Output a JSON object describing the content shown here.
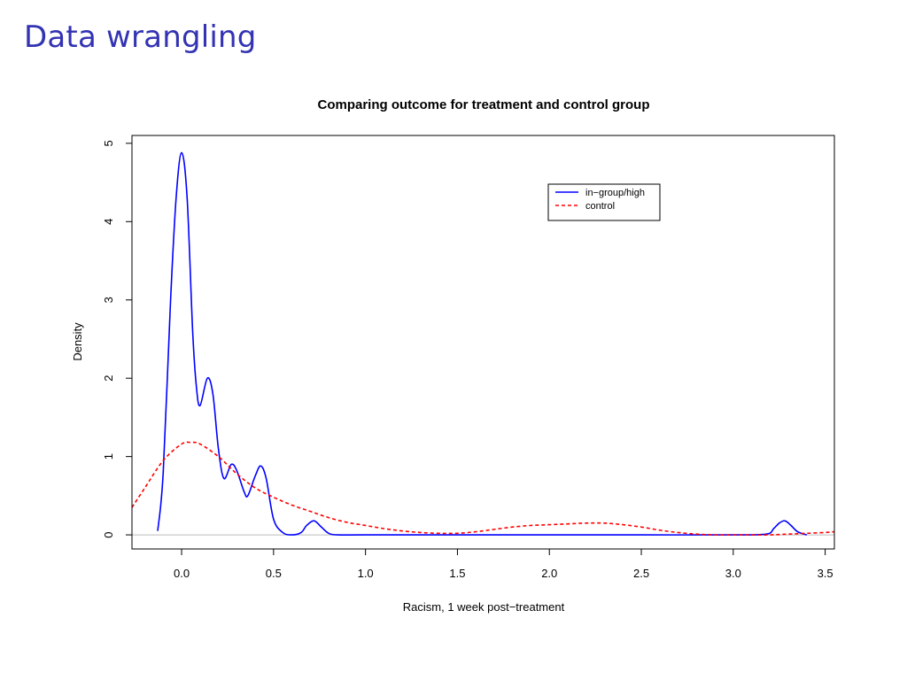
{
  "slide": {
    "title": "Data wrangling"
  },
  "chart_data": {
    "type": "line",
    "title": "Comparing outcome for treatment and control group",
    "xlabel": "Racism, 1 week post−treatment",
    "ylabel": "Density",
    "xlim": [
      -0.27,
      3.55
    ],
    "ylim": [
      -0.18,
      5.1
    ],
    "x_ticks": [
      {
        "value": 0.0,
        "label": "0.0"
      },
      {
        "value": 0.5,
        "label": "0.5"
      },
      {
        "value": 1.0,
        "label": "1.0"
      },
      {
        "value": 1.5,
        "label": "1.5"
      },
      {
        "value": 2.0,
        "label": "2.0"
      },
      {
        "value": 2.5,
        "label": "2.5"
      },
      {
        "value": 3.0,
        "label": "3.0"
      },
      {
        "value": 3.5,
        "label": "3.5"
      }
    ],
    "y_ticks": [
      {
        "value": 0,
        "label": "0"
      },
      {
        "value": 1,
        "label": "1"
      },
      {
        "value": 2,
        "label": "2"
      },
      {
        "value": 3,
        "label": "3"
      },
      {
        "value": 4,
        "label": "4"
      },
      {
        "value": 5,
        "label": "5"
      }
    ],
    "zero_line": true,
    "grid": false,
    "legend": {
      "position": "top-right"
    },
    "series": [
      {
        "name": "in−group/high",
        "color": "#0000ff",
        "dash": "solid",
        "x": [
          -0.13,
          -0.1,
          -0.06,
          -0.03,
          0.0,
          0.03,
          0.06,
          0.08,
          0.1,
          0.14,
          0.17,
          0.2,
          0.23,
          0.27,
          0.3,
          0.34,
          0.36,
          0.4,
          0.43,
          0.46,
          0.5,
          0.55,
          0.6,
          0.65,
          0.68,
          0.72,
          0.76,
          0.8,
          0.85,
          1.0,
          1.5,
          2.0,
          2.5,
          3.0,
          3.18,
          3.22,
          3.25,
          3.28,
          3.31,
          3.35,
          3.4
        ],
        "y": [
          0.05,
          0.8,
          3.0,
          4.3,
          4.88,
          4.3,
          2.6,
          1.9,
          1.65,
          2.0,
          1.8,
          1.1,
          0.72,
          0.9,
          0.82,
          0.55,
          0.5,
          0.75,
          0.88,
          0.72,
          0.2,
          0.03,
          0.0,
          0.03,
          0.12,
          0.18,
          0.1,
          0.02,
          0.0,
          0.0,
          0.0,
          0.0,
          0.0,
          0.0,
          0.01,
          0.08,
          0.15,
          0.18,
          0.13,
          0.04,
          0.0
        ]
      },
      {
        "name": "control",
        "color": "#ff0000",
        "dash": "dashed",
        "x": [
          -0.27,
          -0.2,
          -0.1,
          0.0,
          0.05,
          0.1,
          0.2,
          0.3,
          0.4,
          0.5,
          0.6,
          0.7,
          0.8,
          0.9,
          1.0,
          1.1,
          1.2,
          1.3,
          1.4,
          1.5,
          1.6,
          1.7,
          1.8,
          1.9,
          2.0,
          2.1,
          2.2,
          2.3,
          2.4,
          2.5,
          2.6,
          2.7,
          2.8,
          2.9,
          3.0,
          3.1,
          3.2,
          3.3,
          3.4,
          3.5,
          3.55
        ],
        "y": [
          0.35,
          0.6,
          0.95,
          1.16,
          1.18,
          1.16,
          1.0,
          0.78,
          0.6,
          0.48,
          0.38,
          0.3,
          0.22,
          0.16,
          0.12,
          0.08,
          0.05,
          0.03,
          0.02,
          0.02,
          0.04,
          0.07,
          0.1,
          0.12,
          0.13,
          0.14,
          0.15,
          0.15,
          0.13,
          0.1,
          0.06,
          0.03,
          0.01,
          0.0,
          0.0,
          0.0,
          0.0,
          0.01,
          0.02,
          0.03,
          0.04
        ]
      }
    ]
  }
}
